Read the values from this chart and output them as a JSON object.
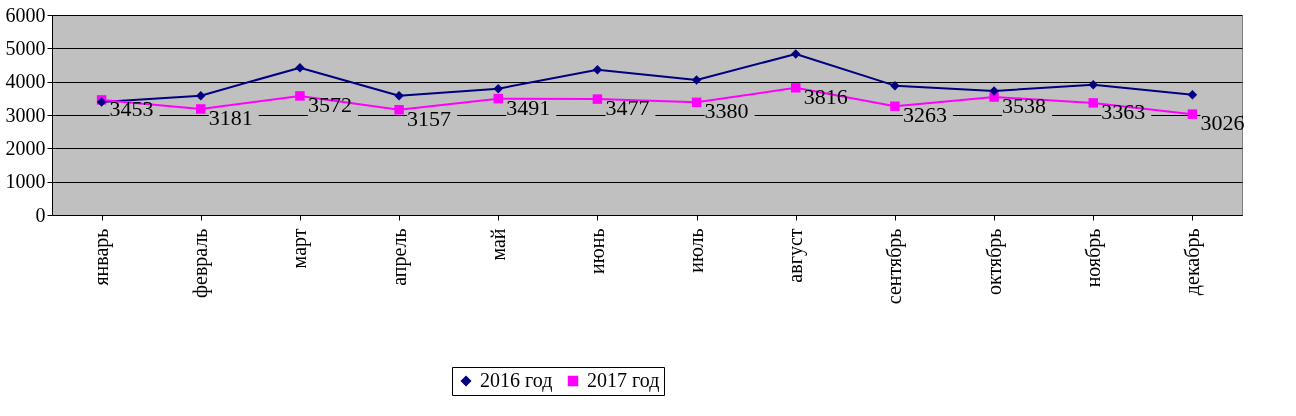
{
  "chart_data": {
    "type": "line",
    "categories": [
      "январь",
      "февраль",
      "март",
      "апрель",
      "май",
      "июнь",
      "июль",
      "август",
      "сентябрь",
      "октябрь",
      "ноябрь",
      "декабрь"
    ],
    "series": [
      {
        "name": "2016 год",
        "color": "#000080",
        "marker": "diamond",
        "values": [
          3390,
          3580,
          4420,
          3580,
          3790,
          4360,
          4050,
          4830,
          3880,
          3720,
          3910,
          3610
        ]
      },
      {
        "name": "2017 год",
        "color": "#ff00ff",
        "marker": "square",
        "values": [
          3453,
          3181,
          3572,
          3157,
          3491,
          3477,
          3380,
          3816,
          3263,
          3538,
          3363,
          3026
        ],
        "value_labels": [
          "3453",
          "3181",
          "3572",
          "3157",
          "3491",
          "3477",
          "3380",
          "3816",
          "3263",
          "3538",
          "3363",
          "3026"
        ]
      }
    ],
    "ylim": [
      0,
      6000
    ],
    "yticks": [
      0,
      1000,
      2000,
      3000,
      4000,
      5000,
      6000
    ],
    "grid": "y",
    "legend": "bottom",
    "line_style": "solid"
  }
}
